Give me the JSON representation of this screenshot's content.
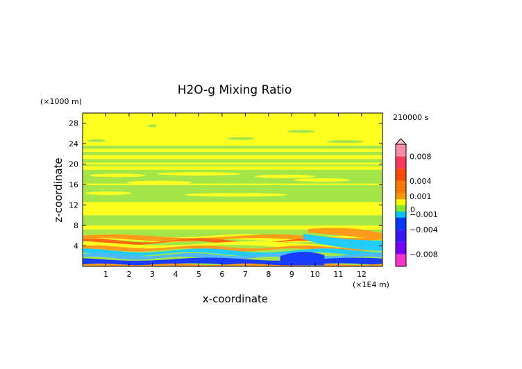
{
  "chart_data": {
    "type": "heatmap",
    "title": "H2O-g Mixing Ratio",
    "xlabel": "x-coordinate",
    "ylabel": "z-coordinate",
    "x_unit": "(×1E4 m)",
    "y_unit": "(×1000 m)",
    "time_label": "210000 s",
    "xlim": [
      0,
      12.9
    ],
    "ylim": [
      0,
      30
    ],
    "x_ticks": [
      1,
      2,
      3,
      4,
      5,
      6,
      7,
      8,
      9,
      10,
      11,
      12
    ],
    "y_ticks": [
      4,
      8,
      12,
      16,
      20,
      24,
      28
    ],
    "colorbar": {
      "labels": [
        "0.008",
        "0.004",
        "0.001",
        "0",
        "−0.001",
        "−0.004",
        "−0.008"
      ],
      "levels": [
        0.008,
        0.004,
        0.001,
        0,
        -0.001,
        -0.004,
        -0.008
      ],
      "range": [
        -0.01,
        0.01
      ],
      "colors": {
        "extend": "#f6c6c6",
        "pos_high": "#ff3a5c",
        "pos_mid": "#ff4a00",
        "pos_low": "#ff9900",
        "zero_plus": "#ffff00",
        "zero_minus": "#80ee30",
        "neg_low": "#00c8ff",
        "neg_mid": "#0038ff",
        "neg_high": "#7a00ff",
        "neg_extreme": "#ff33cc"
      }
    },
    "field_colors": {
      "yellow": "#ffff22",
      "green": "#a4e64a",
      "orange": "#ff9a1a",
      "red_orange": "#ff6a10",
      "cyan": "#22ccff",
      "blue": "#1a3cff",
      "light_blue": "#50b8ff"
    }
  }
}
